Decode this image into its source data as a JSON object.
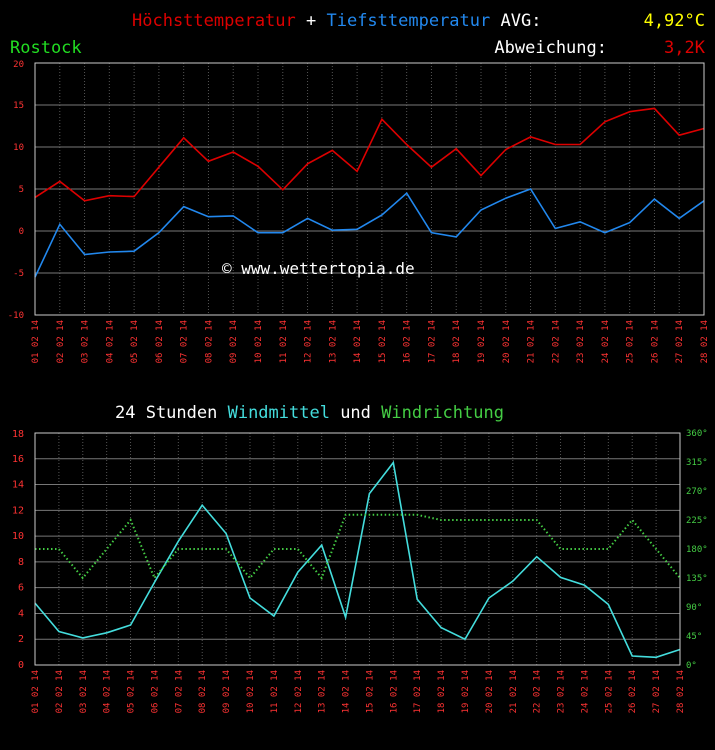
{
  "header": {
    "title_max": "Höchsttemperatur",
    "title_plus": " + ",
    "title_min": "Tiefsttemperatur",
    "avg_label": " AVG:",
    "avg_value": "4,92°C",
    "station": "Rostock",
    "deviation_label": "Abweichung:",
    "deviation_value": "3,2K",
    "watermark": "© www.wettertopia.de"
  },
  "wind_header": {
    "prefix": "24 Stunden ",
    "speed_word": "Windmittel",
    "mid": " und ",
    "dir_word": "Windrichtung"
  },
  "colors": {
    "max_line": "#dd0000",
    "min_line": "#2288ee",
    "speed_line": "#44dddd",
    "dir_line": "#44cc44",
    "avg_value": "#ffff00",
    "station": "#22dd22",
    "axis_text": "#ff3333",
    "grid": "#555555"
  },
  "chart_data": [
    {
      "type": "line",
      "categories": [
        "01 02 14",
        "02 02 14",
        "03 02 14",
        "04 02 14",
        "05 02 14",
        "06 02 14",
        "07 02 14",
        "08 02 14",
        "09 02 14",
        "10 02 14",
        "11 02 14",
        "12 02 14",
        "13 02 14",
        "14 02 14",
        "15 02 14",
        "16 02 14",
        "17 02 14",
        "18 02 14",
        "19 02 14",
        "20 02 14",
        "21 02 14",
        "22 02 14",
        "23 02 14",
        "24 02 14",
        "25 02 14",
        "26 02 14",
        "27 02 14",
        "28 02 14"
      ],
      "series": [
        {
          "name": "Höchsttemperatur",
          "values": [
            4.0,
            5.9,
            3.6,
            4.2,
            4.1,
            7.6,
            11.1,
            8.3,
            9.4,
            7.7,
            4.9,
            8.0,
            9.6,
            7.1,
            13.3,
            10.3,
            7.6,
            9.8,
            6.6,
            9.7,
            11.2,
            10.3,
            10.3,
            13.0,
            14.2,
            14.6,
            11.4,
            12.2
          ]
        },
        {
          "name": "Tiefsttemperatur",
          "values": [
            -5.5,
            0.8,
            -2.8,
            -2.5,
            -2.4,
            -0.2,
            2.9,
            1.7,
            1.8,
            -0.2,
            -0.2,
            1.5,
            0.1,
            0.2,
            1.9,
            4.5,
            -0.2,
            -0.7,
            2.5,
            3.9,
            5.0,
            0.3,
            1.1,
            -0.2,
            1.0,
            3.8,
            1.5,
            3.6
          ]
        }
      ],
      "ylim": [
        -10,
        20
      ],
      "yticks": [
        "-10",
        "-5",
        "0",
        "5",
        "10",
        "15",
        "20"
      ],
      "grid": true
    },
    {
      "type": "line",
      "categories": [
        "01 02 14",
        "02 02 14",
        "03 02 14",
        "04 02 14",
        "05 02 14",
        "06 02 14",
        "07 02 14",
        "08 02 14",
        "09 02 14",
        "10 02 14",
        "11 02 14",
        "12 02 14",
        "13 02 14",
        "14 02 14",
        "15 02 14",
        "16 02 14",
        "17 02 14",
        "18 02 14",
        "19 02 14",
        "20 02 14",
        "21 02 14",
        "22 02 14",
        "23 02 14",
        "24 02 14",
        "25 02 14",
        "26 02 14",
        "27 02 14",
        "28 02 14"
      ],
      "series": [
        {
          "name": "Windmittel",
          "axis": "left",
          "values": [
            4.8,
            2.6,
            2.1,
            2.5,
            3.1,
            6.4,
            9.6,
            12.4,
            10.2,
            5.2,
            3.8,
            7.2,
            9.3,
            3.7,
            13.3,
            15.7,
            5.1,
            2.9,
            2.0,
            5.2,
            6.5,
            8.4,
            6.8,
            6.2,
            4.7,
            0.7,
            0.6,
            1.2
          ]
        },
        {
          "name": "Windrichtung",
          "axis": "right",
          "style": "dotted",
          "values": [
            180,
            180,
            135,
            180,
            225,
            135,
            180,
            180,
            180,
            135,
            180,
            180,
            135,
            233,
            233,
            233,
            233,
            225,
            225,
            225,
            225,
            225,
            180,
            180,
            180,
            225,
            180,
            135
          ]
        }
      ],
      "ylim_left": [
        0,
        18
      ],
      "yticks_left": [
        "0",
        "2",
        "4",
        "6",
        "8",
        "10",
        "12",
        "14",
        "16",
        "18"
      ],
      "ylim_right": [
        0,
        360
      ],
      "yticks_right": [
        "0°",
        "45°",
        "90°",
        "135°",
        "180°",
        "225°",
        "270°",
        "315°",
        "360°"
      ],
      "grid": true
    }
  ]
}
